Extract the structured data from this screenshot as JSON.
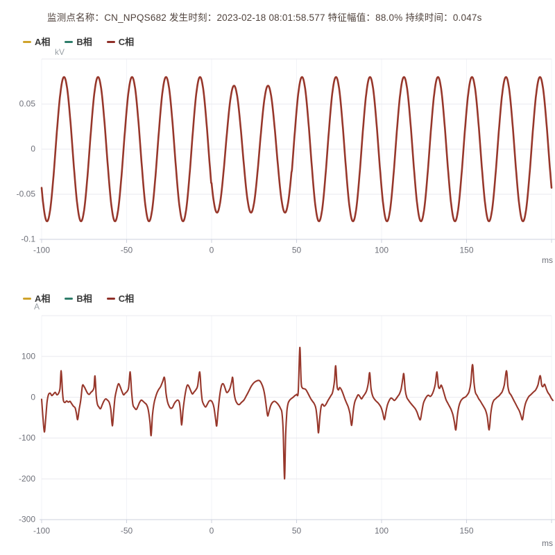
{
  "header": {
    "title": "监测点名称：CN_NPQS682 发生时刻：2023-02-18 08:01:58.577 特征幅值：88.0% 持续时间：0.047s",
    "monitor_point": "CN_NPQS682",
    "occurrence_time": "2023-02-18 08:01:58.577",
    "feature_amplitude": "88.0%",
    "duration": "0.047s"
  },
  "legend": {
    "items": [
      {
        "label": "A相",
        "color": "#cfa32b"
      },
      {
        "label": "B相",
        "color": "#2e7d6a"
      },
      {
        "label": "C相",
        "color": "#8f2f28"
      }
    ]
  },
  "chart_data": [
    {
      "type": "line",
      "name": "voltage-waveform",
      "ylabel_unit": "kV",
      "x_unit": "ms",
      "series_name": "C相",
      "visible_series": [
        "C相"
      ],
      "color": "#97372b",
      "x_range": [
        -100,
        200
      ],
      "x_ticks": [
        -100,
        -50,
        0,
        50,
        100,
        150
      ],
      "y_range": [
        -0.1,
        0.1
      ],
      "y_ticks": [
        "0.05",
        "0",
        "-0.05",
        "-0.1"
      ],
      "grid": true,
      "waveform": {
        "kind": "sine",
        "amplitude": 0.08,
        "period_ms": 20,
        "peak_at_ms": 13.2,
        "sag": {
          "start_ms": 0,
          "end_ms": 47,
          "factor": 0.88
        }
      }
    },
    {
      "type": "line",
      "name": "current-waveform",
      "ylabel_unit": "A",
      "x_unit": "ms",
      "series_name": "C相",
      "visible_series": [
        "C相"
      ],
      "color": "#97372b",
      "x_range": [
        -100,
        200
      ],
      "x_ticks": [
        -100,
        -50,
        0,
        50,
        100,
        150
      ],
      "y_range": [
        -300,
        200
      ],
      "y_ticks": [
        "100",
        "0",
        "-100",
        "-200",
        "-300"
      ],
      "grid": true,
      "points": [
        [
          -100,
          -5
        ],
        [
          -99.3,
          -45
        ],
        [
          -98.4,
          -85
        ],
        [
          -97.6,
          -52
        ],
        [
          -96.8,
          -12
        ],
        [
          -96,
          6
        ],
        [
          -95,
          10
        ],
        [
          -94,
          4
        ],
        [
          -93,
          8
        ],
        [
          -92,
          12
        ],
        [
          -91,
          6
        ],
        [
          -90,
          10
        ],
        [
          -89.2,
          22
        ],
        [
          -88.5,
          65
        ],
        [
          -87.8,
          18
        ],
        [
          -87.2,
          -8
        ],
        [
          -86.3,
          -13
        ],
        [
          -85.3,
          -9
        ],
        [
          -84.3,
          -12
        ],
        [
          -83.3,
          -10
        ],
        [
          -82.3,
          -16
        ],
        [
          -81.3,
          -22
        ],
        [
          -80.3,
          -26
        ],
        [
          -79.5,
          -40
        ],
        [
          -78.8,
          -55
        ],
        [
          -78,
          -32
        ],
        [
          -77,
          -8
        ],
        [
          -76,
          28
        ],
        [
          -75,
          26
        ],
        [
          -74,
          18
        ],
        [
          -73,
          10
        ],
        [
          -72,
          7
        ],
        [
          -71,
          12
        ],
        [
          -70,
          16
        ],
        [
          -69.2,
          24
        ],
        [
          -68.6,
          52
        ],
        [
          -67.9,
          5
        ],
        [
          -67.2,
          -17
        ],
        [
          -66.3,
          -24
        ],
        [
          -65.3,
          -28
        ],
        [
          -64.3,
          -18
        ],
        [
          -63.3,
          -9
        ],
        [
          -62.3,
          -4
        ],
        [
          -61.3,
          -7
        ],
        [
          -60.3,
          -12
        ],
        [
          -59.3,
          -30
        ],
        [
          -58.4,
          -70
        ],
        [
          -57.6,
          -35
        ],
        [
          -56.8,
          0
        ],
        [
          -55.8,
          20
        ],
        [
          -54.8,
          33
        ],
        [
          -53.8,
          26
        ],
        [
          -52.8,
          15
        ],
        [
          -51.8,
          6
        ],
        [
          -50.8,
          10
        ],
        [
          -49.8,
          14
        ],
        [
          -48.8,
          24
        ],
        [
          -47.9,
          62
        ],
        [
          -47.1,
          15
        ],
        [
          -46.3,
          -18
        ],
        [
          -45.3,
          -26
        ],
        [
          -44.3,
          -30
        ],
        [
          -43.3,
          -22
        ],
        [
          -42.3,
          -12
        ],
        [
          -41.3,
          -7
        ],
        [
          -40.3,
          -10
        ],
        [
          -39.3,
          -14
        ],
        [
          -38.3,
          -18
        ],
        [
          -37.3,
          -30
        ],
        [
          -36.3,
          -60
        ],
        [
          -35.6,
          -94
        ],
        [
          -34.8,
          -45
        ],
        [
          -34,
          -18
        ],
        [
          -33,
          0
        ],
        [
          -32,
          12
        ],
        [
          -31,
          20
        ],
        [
          -30,
          26
        ],
        [
          -28.8,
          38
        ],
        [
          -27.7,
          48
        ],
        [
          -26.8,
          10
        ],
        [
          -26,
          -10
        ],
        [
          -25,
          -22
        ],
        [
          -24,
          -27
        ],
        [
          -23,
          -25
        ],
        [
          -22,
          -16
        ],
        [
          -21,
          -10
        ],
        [
          -20,
          -7
        ],
        [
          -19,
          -12
        ],
        [
          -18.3,
          -35
        ],
        [
          -17.6,
          -68
        ],
        [
          -16.8,
          -32
        ],
        [
          -16,
          -5
        ],
        [
          -15,
          20
        ],
        [
          -14.2,
          30
        ],
        [
          -13.3,
          26
        ],
        [
          -12.3,
          16
        ],
        [
          -11.3,
          8
        ],
        [
          -10.3,
          13
        ],
        [
          -9.3,
          18
        ],
        [
          -8.2,
          28
        ],
        [
          -7,
          62
        ],
        [
          -6.2,
          20
        ],
        [
          -5.5,
          -8
        ],
        [
          -4.6,
          -18
        ],
        [
          -3.6,
          -24
        ],
        [
          -2.6,
          -18
        ],
        [
          -1.6,
          -10
        ],
        [
          -0.6,
          -8
        ],
        [
          0.4,
          -12
        ],
        [
          1.4,
          -25
        ],
        [
          2.4,
          -55
        ],
        [
          3,
          -70
        ],
        [
          3.8,
          -35
        ],
        [
          4.8,
          5
        ],
        [
          5.8,
          28
        ],
        [
          6.8,
          33
        ],
        [
          7.8,
          24
        ],
        [
          8.8,
          12
        ],
        [
          9.8,
          14
        ],
        [
          10.8,
          22
        ],
        [
          11.8,
          38
        ],
        [
          12.4,
          48
        ],
        [
          13.2,
          12
        ],
        [
          14,
          -6
        ],
        [
          15,
          -15
        ],
        [
          16.2,
          -18
        ],
        [
          17.5,
          -13
        ],
        [
          19,
          -7
        ],
        [
          20.5,
          4
        ],
        [
          22,
          16
        ],
        [
          23.5,
          28
        ],
        [
          25,
          36
        ],
        [
          26.5,
          40
        ],
        [
          28,
          41
        ],
        [
          29.2,
          35
        ],
        [
          30.4,
          22
        ],
        [
          31.4,
          2
        ],
        [
          32.4,
          -30
        ],
        [
          33,
          -46
        ],
        [
          33.8,
          -35
        ],
        [
          34.8,
          -20
        ],
        [
          36,
          -12
        ],
        [
          37.2,
          -10
        ],
        [
          38.4,
          -14
        ],
        [
          39.6,
          -20
        ],
        [
          40.6,
          -28
        ],
        [
          41.4,
          -38
        ],
        [
          42.1,
          -80
        ],
        [
          42.9,
          -200
        ],
        [
          43.6,
          -90
        ],
        [
          44.3,
          -35
        ],
        [
          45,
          -15
        ],
        [
          46,
          -7
        ],
        [
          47,
          -3
        ],
        [
          48,
          0
        ],
        [
          49,
          4
        ],
        [
          50,
          7
        ],
        [
          51,
          14
        ],
        [
          51.9,
          122
        ],
        [
          52.7,
          38
        ],
        [
          53.4,
          23
        ],
        [
          54.4,
          21
        ],
        [
          55.4,
          19
        ],
        [
          56.4,
          12
        ],
        [
          57.4,
          4
        ],
        [
          58.4,
          -4
        ],
        [
          59.4,
          -10
        ],
        [
          60.4,
          -16
        ],
        [
          61.4,
          -28
        ],
        [
          62.3,
          -60
        ],
        [
          62.9,
          -87
        ],
        [
          63.7,
          -48
        ],
        [
          64.5,
          -22
        ],
        [
          65.3,
          -17
        ],
        [
          66.2,
          -22
        ],
        [
          67.2,
          -18
        ],
        [
          68.2,
          -10
        ],
        [
          69.2,
          -3
        ],
        [
          70.2,
          4
        ],
        [
          71.2,
          12
        ],
        [
          72.3,
          40
        ],
        [
          73,
          77
        ],
        [
          73.8,
          28
        ],
        [
          74.6,
          18
        ],
        [
          75.4,
          24
        ],
        [
          76.4,
          18
        ],
        [
          77.4,
          8
        ],
        [
          78.4,
          -4
        ],
        [
          79.4,
          -14
        ],
        [
          80.4,
          -24
        ],
        [
          81.4,
          -40
        ],
        [
          82.4,
          -69
        ],
        [
          83.3,
          -35
        ],
        [
          84.2,
          -12
        ],
        [
          85.2,
          -2
        ],
        [
          86.2,
          6
        ],
        [
          87.2,
          2
        ],
        [
          88.2,
          -4
        ],
        [
          89.2,
          2
        ],
        [
          90.2,
          8
        ],
        [
          91.2,
          16
        ],
        [
          92.2,
          35
        ],
        [
          93,
          60
        ],
        [
          93.8,
          22
        ],
        [
          94.7,
          4
        ],
        [
          95.7,
          -4
        ],
        [
          96.7,
          -9
        ],
        [
          97.7,
          -13
        ],
        [
          98.7,
          -18
        ],
        [
          99.7,
          -25
        ],
        [
          100.7,
          -38
        ],
        [
          101.7,
          -55
        ],
        [
          102.6,
          -35
        ],
        [
          103.5,
          -18
        ],
        [
          104.5,
          -8
        ],
        [
          105.5,
          -2
        ],
        [
          106.5,
          -4
        ],
        [
          107.5,
          -8
        ],
        [
          108.5,
          -4
        ],
        [
          109.5,
          2
        ],
        [
          110.5,
          8
        ],
        [
          111.5,
          20
        ],
        [
          112.5,
          45
        ],
        [
          113.1,
          57
        ],
        [
          113.9,
          18
        ],
        [
          114.8,
          0
        ],
        [
          115.8,
          -7
        ],
        [
          116.8,
          -13
        ],
        [
          117.8,
          -18
        ],
        [
          118.8,
          -23
        ],
        [
          119.8,
          -28
        ],
        [
          120.8,
          -36
        ],
        [
          121.8,
          -48
        ],
        [
          122.8,
          -55
        ],
        [
          123.7,
          -35
        ],
        [
          124.6,
          -15
        ],
        [
          125.6,
          -5
        ],
        [
          126.6,
          2
        ],
        [
          127.6,
          5
        ],
        [
          128.6,
          2
        ],
        [
          129.6,
          6
        ],
        [
          130.6,
          16
        ],
        [
          131.6,
          32
        ],
        [
          132.6,
          62
        ],
        [
          133.4,
          28
        ],
        [
          134.2,
          22
        ],
        [
          135,
          30
        ],
        [
          135.9,
          22
        ],
        [
          136.9,
          8
        ],
        [
          137.9,
          -6
        ],
        [
          138.9,
          -14
        ],
        [
          139.9,
          -22
        ],
        [
          140.9,
          -30
        ],
        [
          141.9,
          -42
        ],
        [
          142.9,
          -62
        ],
        [
          143.7,
          -80
        ],
        [
          144.6,
          -45
        ],
        [
          145.5,
          -22
        ],
        [
          146.5,
          -10
        ],
        [
          147.5,
          -4
        ],
        [
          148.5,
          -1
        ],
        [
          149.5,
          1
        ],
        [
          150.5,
          6
        ],
        [
          151.5,
          14
        ],
        [
          152.5,
          35
        ],
        [
          153.5,
          80
        ],
        [
          154.4,
          35
        ],
        [
          155.2,
          12
        ],
        [
          156.2,
          4
        ],
        [
          157.2,
          -4
        ],
        [
          158.2,
          -10
        ],
        [
          159.2,
          -17
        ],
        [
          160.2,
          -24
        ],
        [
          161.2,
          -32
        ],
        [
          162.2,
          -48
        ],
        [
          163.3,
          -80
        ],
        [
          164.2,
          -42
        ],
        [
          165.1,
          -18
        ],
        [
          166,
          -8
        ],
        [
          167,
          -4
        ],
        [
          168,
          0
        ],
        [
          169,
          3
        ],
        [
          170,
          8
        ],
        [
          171,
          14
        ],
        [
          172.2,
          30
        ],
        [
          173.5,
          65
        ],
        [
          174.3,
          28
        ],
        [
          175.1,
          12
        ],
        [
          176.1,
          6
        ],
        [
          177.1,
          -2
        ],
        [
          178.1,
          -10
        ],
        [
          179.1,
          -18
        ],
        [
          180.1,
          -26
        ],
        [
          181.1,
          -34
        ],
        [
          182,
          -45
        ],
        [
          182.9,
          -55
        ],
        [
          183.8,
          -32
        ],
        [
          184.7,
          -15
        ],
        [
          185.7,
          -5
        ],
        [
          186.7,
          2
        ],
        [
          187.7,
          6
        ],
        [
          188.7,
          10
        ],
        [
          189.7,
          14
        ],
        [
          190.7,
          18
        ],
        [
          192,
          30
        ],
        [
          193.3,
          53
        ],
        [
          194.2,
          30
        ],
        [
          195,
          26
        ],
        [
          195.9,
          32
        ],
        [
          196.8,
          22
        ],
        [
          197.8,
          12
        ],
        [
          198.8,
          6
        ],
        [
          199.8,
          -2
        ],
        [
          200.8,
          -8
        ]
      ]
    }
  ]
}
